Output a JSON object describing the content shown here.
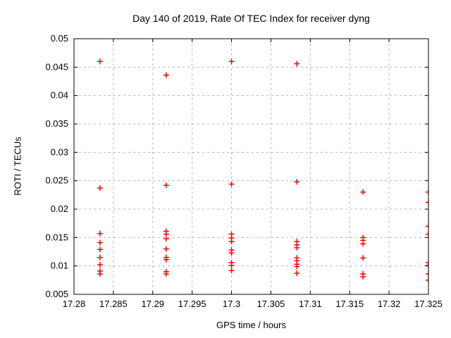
{
  "title": "Day 140 of 2019, Rate Of TEC Index for receiver dyng",
  "colors": {
    "marker": "#ff0000",
    "grid": "#b4b4b4",
    "frame": "#000000",
    "background": "#ffffff",
    "text": "#000000"
  },
  "chart_data": {
    "type": "scatter",
    "title": "Day 140 of 2019, Rate Of TEC Index for receiver dyng",
    "xlabel": "GPS time / hours",
    "ylabel": "ROTI / TECUs",
    "xlim": [
      17.28,
      17.325
    ],
    "ylim": [
      0.005,
      0.05
    ],
    "xticks": [
      17.28,
      17.285,
      17.29,
      17.295,
      17.3,
      17.305,
      17.31,
      17.315,
      17.32,
      17.325
    ],
    "xtick_labels": [
      "17.28",
      "17.285",
      "17.29",
      "17.295",
      "17.3",
      "17.305",
      "17.31",
      "17.315",
      "17.32",
      "17.325"
    ],
    "yticks": [
      0.005,
      0.01,
      0.015,
      0.02,
      0.025,
      0.03,
      0.035,
      0.04,
      0.045,
      0.05
    ],
    "ytick_labels": [
      "0.005",
      "0.01",
      "0.015",
      "0.02",
      "0.025",
      "0.03",
      "0.035",
      "0.04",
      "0.045",
      "0.05"
    ],
    "grid": true,
    "legend": false,
    "marker": "plus",
    "series": [
      {
        "name": "ROTI",
        "points": [
          [
            17.2833,
            0.046
          ],
          [
            17.2833,
            0.0237
          ],
          [
            17.2833,
            0.0157
          ],
          [
            17.2833,
            0.0141
          ],
          [
            17.2833,
            0.0129
          ],
          [
            17.2833,
            0.0115
          ],
          [
            17.2833,
            0.0102
          ],
          [
            17.2833,
            0.0091
          ],
          [
            17.2833,
            0.0086
          ],
          [
            17.2917,
            0.0436
          ],
          [
            17.2917,
            0.0242
          ],
          [
            17.2917,
            0.0161
          ],
          [
            17.2917,
            0.0156
          ],
          [
            17.2917,
            0.0148
          ],
          [
            17.2917,
            0.013
          ],
          [
            17.2917,
            0.0115
          ],
          [
            17.2917,
            0.0111
          ],
          [
            17.2917,
            0.009
          ],
          [
            17.2917,
            0.0086
          ],
          [
            17.3,
            0.046
          ],
          [
            17.3,
            0.0244
          ],
          [
            17.3,
            0.0156
          ],
          [
            17.3,
            0.0149
          ],
          [
            17.3,
            0.0143
          ],
          [
            17.3,
            0.0128
          ],
          [
            17.3,
            0.0123
          ],
          [
            17.3,
            0.0106
          ],
          [
            17.3,
            0.0101
          ],
          [
            17.3,
            0.0092
          ],
          [
            17.3083,
            0.0456
          ],
          [
            17.3083,
            0.0248
          ],
          [
            17.3083,
            0.0143
          ],
          [
            17.3083,
            0.0137
          ],
          [
            17.3083,
            0.0132
          ],
          [
            17.3083,
            0.0114
          ],
          [
            17.3083,
            0.0109
          ],
          [
            17.3083,
            0.0103
          ],
          [
            17.3083,
            0.0099
          ],
          [
            17.3083,
            0.0087
          ],
          [
            17.3167,
            0.023
          ],
          [
            17.3167,
            0.015
          ],
          [
            17.3167,
            0.0145
          ],
          [
            17.3167,
            0.0139
          ],
          [
            17.3167,
            0.0114
          ],
          [
            17.3167,
            0.0086
          ],
          [
            17.3167,
            0.0081
          ],
          [
            17.325,
            0.023
          ],
          [
            17.325,
            0.0212
          ],
          [
            17.325,
            0.017
          ],
          [
            17.325,
            0.0156
          ],
          [
            17.325,
            0.0106
          ],
          [
            17.325,
            0.0101
          ],
          [
            17.325,
            0.0086
          ],
          [
            17.325,
            0.0075
          ]
        ]
      }
    ]
  }
}
